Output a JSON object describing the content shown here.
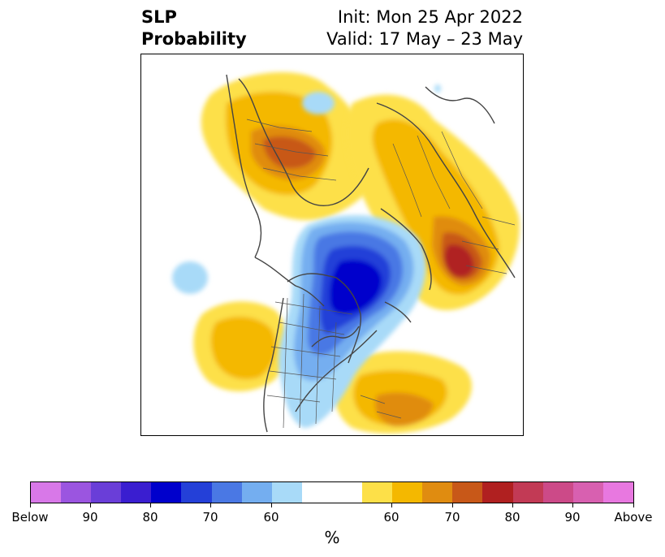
{
  "title": {
    "left_line1": "SLP",
    "left_line2": "Probability",
    "right_line1": "Init: Mon 25 Apr 2022",
    "right_line2": "Valid: 17 May – 23 May"
  },
  "colorbar": {
    "unit": "%",
    "tick_labels": [
      "Below",
      "90",
      "80",
      "70",
      "60",
      "60",
      "70",
      "80",
      "90",
      "Above"
    ],
    "colors": [
      "#d878e8",
      "#9b55e0",
      "#6a3ed8",
      "#3a1ed0",
      "#0000cc",
      "#2440d8",
      "#4a78e4",
      "#74aef0",
      "#a8daf8",
      "#ffffff",
      "#fde048",
      "#f4b800",
      "#e08c10",
      "#c85818",
      "#b02020",
      "#c23a55",
      "#cc4a88",
      "#d860b0",
      "#e878e0"
    ]
  },
  "map": {
    "projection": "north-polar stereographic",
    "field": "SLP probability",
    "features": [
      "coastlines",
      "country-borders",
      "state-province-borders"
    ]
  }
}
